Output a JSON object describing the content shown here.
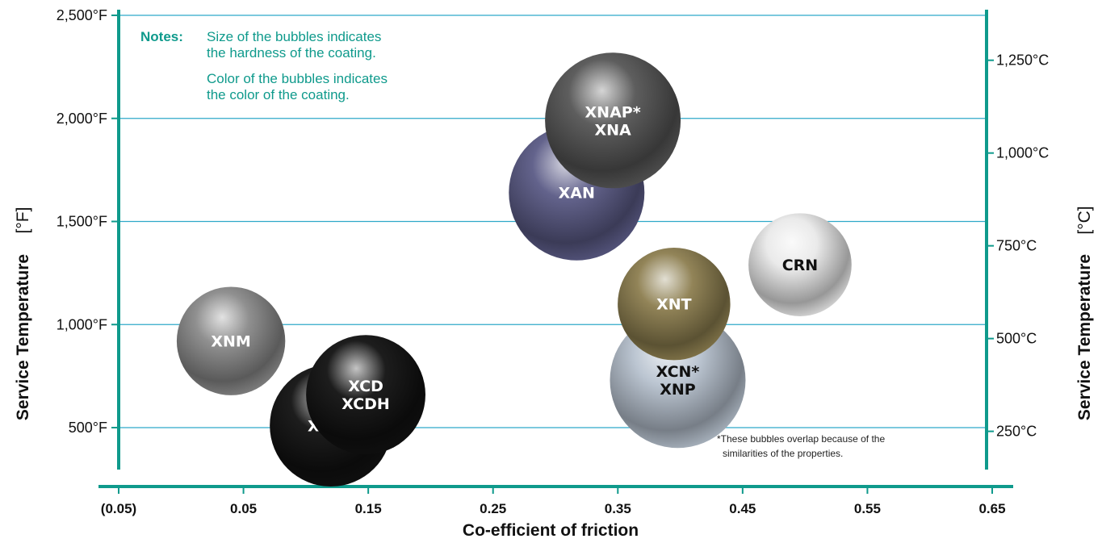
{
  "colors": {
    "axis": "#0f9a8c",
    "grid": "#2fa9c9",
    "notes": "#0f9a8c",
    "grey": "#8a8a8a",
    "black": "#111111",
    "slate_blue": "#5b5b86",
    "dark_grey": "#555555",
    "olive": "#8c7e4f",
    "light_silver_blue": "#b7c2cf",
    "white_silver": "#e9e9e9"
  },
  "chart_data": {
    "type": "bubble",
    "xlabel": "Co-efficient of friction",
    "ylabel_left": "Service Temperature",
    "ylabel_left_unit": "[°F]",
    "ylabel_right": "Service Temperature",
    "ylabel_right_unit": "[°C]",
    "x_ticks": [
      {
        "value": -0.05,
        "label": "(0.05)"
      },
      {
        "value": 0.05,
        "label": "0.05"
      },
      {
        "value": 0.15,
        "label": "0.15"
      },
      {
        "value": 0.25,
        "label": "0.25"
      },
      {
        "value": 0.35,
        "label": "0.35"
      },
      {
        "value": 0.45,
        "label": "0.45"
      },
      {
        "value": 0.55,
        "label": "0.55"
      },
      {
        "value": 0.65,
        "label": "0.65"
      }
    ],
    "xlim": [
      -0.05,
      0.65
    ],
    "y_left_ticks": [
      {
        "value": 500,
        "label": "500°F"
      },
      {
        "value": 1000,
        "label": "1,000°F"
      },
      {
        "value": 1500,
        "label": "1,500°F"
      },
      {
        "value": 2000,
        "label": "2,000°F"
      },
      {
        "value": 2500,
        "label": "2,500°F"
      }
    ],
    "y_right_ticks": [
      {
        "value": 250,
        "label": "250°C"
      },
      {
        "value": 500,
        "label": "500°C"
      },
      {
        "value": 750,
        "label": "750°C"
      },
      {
        "value": 1000,
        "label": "1,000°C"
      },
      {
        "value": 1250,
        "label": "1,250°C"
      }
    ],
    "ylim_f": [
      250,
      2500
    ],
    "notes": {
      "heading": "Notes:",
      "lines": [
        "Size of the bubbles indicates",
        "the hardness of the coating.",
        "Color of the bubbles indicates",
        "the color of the coating."
      ]
    },
    "footnote": [
      "*These bubbles overlap because of the",
      "similarities of the properties."
    ],
    "bubbles": [
      {
        "name": "XNM",
        "labels": [
          "XNM"
        ],
        "x": 0.04,
        "y": 920,
        "size": 0.8,
        "color": "grey",
        "label_color": "#ffffff"
      },
      {
        "name": "XCDP",
        "labels": [
          "XCDP"
        ],
        "x": 0.12,
        "y": 510,
        "size": 0.9,
        "color": "black",
        "label_color": "#ffffff"
      },
      {
        "name": "XCD / XCDH",
        "labels": [
          "XCD",
          "XCDH"
        ],
        "x": 0.148,
        "y": 660,
        "size": 0.88,
        "color": "black",
        "label_color": "#ffffff"
      },
      {
        "name": "XAN",
        "labels": [
          "XAN"
        ],
        "x": 0.317,
        "y": 1640,
        "size": 1.0,
        "color": "slate_blue",
        "label_color": "#ffffff"
      },
      {
        "name": "XNAP* / XNA",
        "labels": [
          "XNAP*",
          "XNA"
        ],
        "x": 0.346,
        "y": 1990,
        "size": 1.0,
        "color": "dark_grey",
        "label_color": "#ffffff"
      },
      {
        "name": "XCN* / XNP",
        "labels": [
          "XCN*",
          "XNP"
        ],
        "x": 0.398,
        "y": 730,
        "size": 1.0,
        "color": "light_silver_blue",
        "label_color": "#111111"
      },
      {
        "name": "XNT",
        "labels": [
          "XNT"
        ],
        "x": 0.395,
        "y": 1100,
        "size": 0.83,
        "color": "olive",
        "label_color": "#ffffff"
      },
      {
        "name": "CRN",
        "labels": [
          "CRN"
        ],
        "x": 0.496,
        "y": 1290,
        "size": 0.76,
        "color": "white_silver",
        "label_color": "#111111"
      }
    ]
  }
}
